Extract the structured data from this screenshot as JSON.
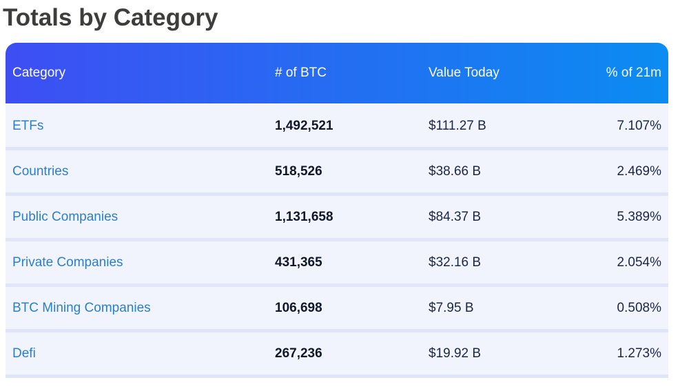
{
  "page": {
    "title": "Totals by Category"
  },
  "table": {
    "columns": [
      {
        "label": "Category",
        "align": "left"
      },
      {
        "label": "# of BTC",
        "align": "left"
      },
      {
        "label": "Value Today",
        "align": "left"
      },
      {
        "label": "% of 21m",
        "align": "right"
      }
    ],
    "rows": [
      {
        "category": "ETFs",
        "btc": "1,492,521",
        "value": "$111.27 B",
        "pct": "7.107%"
      },
      {
        "category": "Countries",
        "btc": "518,526",
        "value": "$38.66 B",
        "pct": "2.469%"
      },
      {
        "category": "Public Companies",
        "btc": "1,131,658",
        "value": "$84.37 B",
        "pct": "5.389%"
      },
      {
        "category": "Private Companies",
        "btc": "431,365",
        "value": "$32.16 B",
        "pct": "2.054%"
      },
      {
        "category": "BTC Mining Companies",
        "btc": "106,698",
        "value": "$7.95 B",
        "pct": "0.508%"
      },
      {
        "category": "Defi",
        "btc": "267,236",
        "value": "$19.92 B",
        "pct": "1.273%"
      }
    ],
    "colors": {
      "title_text": "#3d3d3c",
      "header_gradient_left": "#3e4ef3",
      "header_gradient_right": "#0b8cf2",
      "header_text": "#ffffff",
      "row_bg": "#f1f4fc",
      "row_divider": "#e1e5f9",
      "category_link": "#2b7fc9",
      "number_text": "#101828",
      "value_text": "#1b2742"
    }
  }
}
